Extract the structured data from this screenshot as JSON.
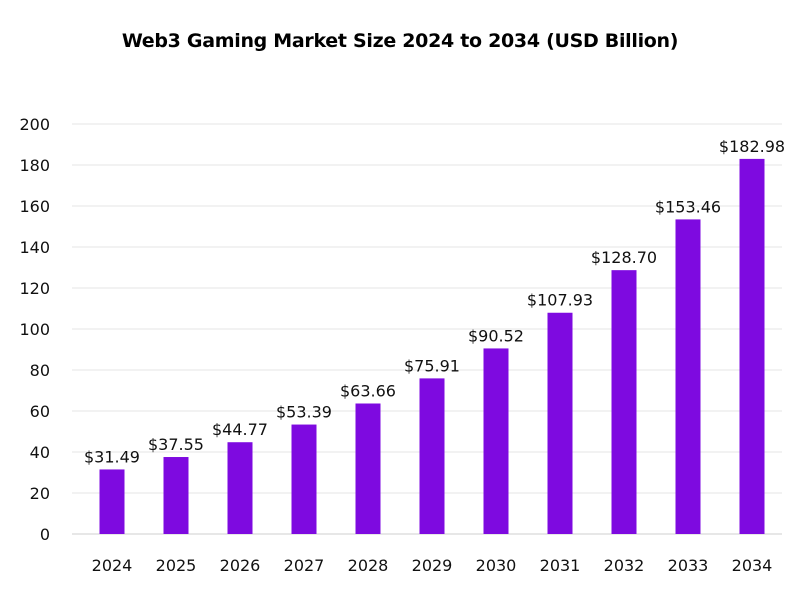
{
  "chart_data": {
    "type": "bar",
    "title": "Web3 Gaming Market Size 2024 to 2034 (USD Billion)",
    "categories": [
      "2024",
      "2025",
      "2026",
      "2027",
      "2028",
      "2029",
      "2030",
      "2031",
      "2032",
      "2033",
      "2034"
    ],
    "values": [
      31.49,
      37.55,
      44.77,
      53.39,
      63.66,
      75.91,
      90.52,
      107.93,
      128.7,
      153.46,
      182.98
    ],
    "data_labels": [
      "$31.49",
      "$37.55",
      "$44.77",
      "$53.39",
      "$63.66",
      "$75.91",
      "$90.52",
      "$107.93",
      "$128.70",
      "$153.46",
      "$182.98"
    ],
    "xlabel": "",
    "ylabel": "",
    "ylim": [
      0,
      200
    ],
    "yticks": [
      0,
      20,
      40,
      60,
      80,
      100,
      120,
      140,
      160,
      180,
      200
    ],
    "grid": true,
    "legend": "none",
    "bar_color": "#7E0AE0"
  }
}
